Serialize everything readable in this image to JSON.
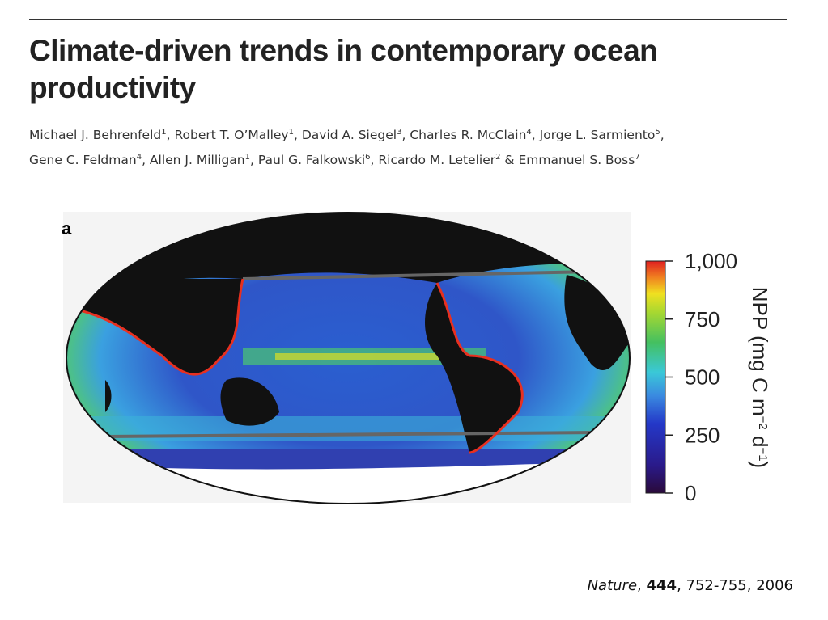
{
  "header": {
    "title": "Climate-driven trends in contemporary ocean productivity"
  },
  "authors": {
    "separator": ", ",
    "last_separator": " & ",
    "list": [
      {
        "name": "Michael J. Behrenfeld",
        "affiliation": "1"
      },
      {
        "name": "Robert T. O’Malley",
        "affiliation": "1"
      },
      {
        "name": "David A. Siegel",
        "affiliation": "3"
      },
      {
        "name": "Charles R. McClain",
        "affiliation": "4"
      },
      {
        "name": "Jorge L. Sarmiento",
        "affiliation": "5"
      },
      {
        "name": "Gene C. Feldman",
        "affiliation": "4"
      },
      {
        "name": "Allen J. Milligan",
        "affiliation": "1"
      },
      {
        "name": "Paul G. Falkowski",
        "affiliation": "6"
      },
      {
        "name": "Ricardo M. Letelier",
        "affiliation": "2"
      },
      {
        "name": "Emmanuel S. Boss",
        "affiliation": "7"
      }
    ]
  },
  "figure": {
    "panel": "a",
    "colorbar": {
      "label": [
        "NPP (mg C m",
        "−2",
        " d",
        "−1",
        ")"
      ],
      "range": [
        0,
        1000
      ],
      "ticks": [
        {
          "value": 1000,
          "label": "1,000"
        },
        750,
        500,
        250,
        0
      ]
    }
  },
  "citation": {
    "journal": "Nature",
    "volume": "444",
    "pages": "752-755",
    "year": "2006",
    "separator": ", "
  }
}
